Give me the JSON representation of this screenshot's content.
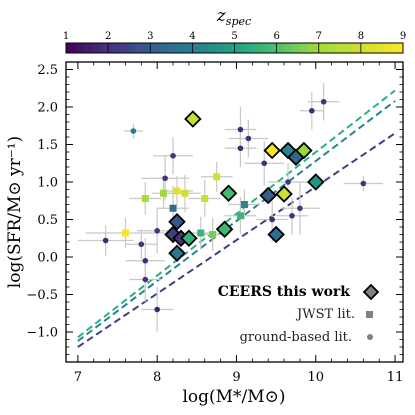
{
  "chart_data": {
    "type": "scatter",
    "xlabel": "log(M*/M⊙)",
    "ylabel": "log(SFR/M⊙ yr⁻¹)",
    "xlim": [
      6.85,
      11.1
    ],
    "ylim": [
      -1.4,
      2.6
    ],
    "x_ticks": [
      7,
      8,
      9,
      10,
      11
    ],
    "y_ticks": [
      -1.0,
      -0.5,
      0.0,
      0.5,
      1.0,
      1.5,
      2.0,
      2.5
    ],
    "x_tick_labels": [
      "7",
      "8",
      "9",
      "10",
      "11"
    ],
    "y_tick_labels": [
      "−1.0",
      "−0.5",
      "0.0",
      "0.5",
      "1.0",
      "1.5",
      "2.0",
      "2.5"
    ],
    "colorbar": {
      "label": "z",
      "label_subscript": "spec",
      "range": [
        1,
        9
      ],
      "ticks": [
        1,
        2,
        3,
        4,
        5,
        6,
        7,
        8,
        9
      ],
      "tick_labels": [
        "1",
        "2",
        "3",
        "4",
        "5",
        "6",
        "7",
        "8",
        "9"
      ],
      "colormap": "viridis"
    },
    "lines": [
      {
        "z": 2.0,
        "x": [
          7.0,
          11.0
        ],
        "y": [
          -1.2,
          1.65
        ],
        "color": "#433e85"
      },
      {
        "z": 5.0,
        "x": [
          7.0,
          11.0
        ],
        "y": [
          -1.12,
          2.08
        ],
        "color": "#26828e"
      },
      {
        "z": 6.5,
        "x": [
          7.0,
          11.0
        ],
        "y": [
          -1.07,
          2.22
        ],
        "color": "#2ab07f"
      }
    ],
    "series": [
      {
        "name": "CEERS this work",
        "marker": "diamond",
        "points": [
          {
            "x": 8.45,
            "y": 1.84,
            "z": 7.8
          },
          {
            "x": 9.45,
            "y": 1.42,
            "z": 8.8
          },
          {
            "x": 9.65,
            "y": 1.42,
            "z": 4.2
          },
          {
            "x": 9.75,
            "y": 1.33,
            "z": 3.3
          },
          {
            "x": 9.85,
            "y": 1.42,
            "z": 6.9
          },
          {
            "x": 10.0,
            "y": 1.0,
            "z": 4.7
          },
          {
            "x": 9.4,
            "y": 0.82,
            "z": 3.1
          },
          {
            "x": 9.6,
            "y": 0.84,
            "z": 8.0
          },
          {
            "x": 8.9,
            "y": 0.85,
            "z": 5.8
          },
          {
            "x": 8.85,
            "y": 0.37,
            "z": 5.7
          },
          {
            "x": 9.5,
            "y": 0.3,
            "z": 3.5
          },
          {
            "x": 8.25,
            "y": 0.47,
            "z": 2.9
          },
          {
            "x": 8.2,
            "y": 0.3,
            "z": 2.3
          },
          {
            "x": 8.3,
            "y": 0.25,
            "z": 2.1
          },
          {
            "x": 8.4,
            "y": 0.25,
            "z": 5.5
          },
          {
            "x": 8.25,
            "y": 0.05,
            "z": 3.8
          }
        ]
      },
      {
        "name": "JWST lit.",
        "marker": "square",
        "points": [
          {
            "x": 7.85,
            "y": 0.78,
            "z": 7.2,
            "xerr": 0.2,
            "yerr": 0.22
          },
          {
            "x": 8.08,
            "y": 0.85,
            "z": 7.0,
            "xerr": 0.15,
            "yerr": 0.2
          },
          {
            "x": 8.2,
            "y": 0.65,
            "z": 3.4,
            "xerr": 0.2,
            "yerr": 0.3
          },
          {
            "x": 8.25,
            "y": 0.88,
            "z": 8.4,
            "xerr": 0.2,
            "yerr": 0.2
          },
          {
            "x": 8.35,
            "y": 0.85,
            "z": 8.0,
            "xerr": 0.2,
            "yerr": 0.25
          },
          {
            "x": 8.6,
            "y": 0.78,
            "z": 7.9,
            "xerr": 0.2,
            "yerr": 0.25
          },
          {
            "x": 8.75,
            "y": 1.07,
            "z": 8.1,
            "xerr": 0.2,
            "yerr": 0.2
          },
          {
            "x": 7.6,
            "y": 0.32,
            "z": 8.9,
            "xerr": 0.5,
            "yerr": 0.2
          },
          {
            "x": 9.05,
            "y": 0.55,
            "z": 5.7,
            "xerr": 0.2,
            "yerr": 0.25
          },
          {
            "x": 9.1,
            "y": 0.7,
            "z": 4.2,
            "xerr": 0.2,
            "yerr": 0.2
          },
          {
            "x": 8.55,
            "y": 0.32,
            "z": 5.6,
            "xerr": 0.2,
            "yerr": 0.22
          },
          {
            "x": 8.7,
            "y": 0.3,
            "z": 6.5,
            "xerr": 0.2,
            "yerr": 0.22
          }
        ]
      },
      {
        "name": "ground-based lit.",
        "marker": "circle",
        "points": [
          {
            "x": 7.7,
            "y": 1.68,
            "z": 3.8,
            "xerr": 0.12,
            "yerr": 0.1
          },
          {
            "x": 8.2,
            "y": 1.35,
            "z": 2.0,
            "xerr": 0.25,
            "yerr": 0.25
          },
          {
            "x": 8.1,
            "y": 1.05,
            "z": 2.0,
            "xerr": 0.3,
            "yerr": 0.3
          },
          {
            "x": 9.05,
            "y": 1.7,
            "z": 1.8,
            "xerr": 0.2,
            "yerr": 0.3
          },
          {
            "x": 9.05,
            "y": 1.45,
            "z": 1.8,
            "xerr": 0.2,
            "yerr": 0.25
          },
          {
            "x": 9.15,
            "y": 1.58,
            "z": 2.0,
            "xerr": 0.25,
            "yerr": 0.25
          },
          {
            "x": 9.35,
            "y": 1.25,
            "z": 1.9,
            "xerr": 0.25,
            "yerr": 0.3
          },
          {
            "x": 9.95,
            "y": 1.95,
            "z": 1.8,
            "xerr": 0.15,
            "yerr": 0.25
          },
          {
            "x": 10.1,
            "y": 2.07,
            "z": 1.9,
            "xerr": 0.2,
            "yerr": 0.25
          },
          {
            "x": 10.6,
            "y": 0.98,
            "z": 2.0,
            "xerr": 0.25,
            "yerr": 0.1
          },
          {
            "x": 9.65,
            "y": 1.0,
            "z": 2.1,
            "xerr": 0.25,
            "yerr": 0.25
          },
          {
            "x": 9.7,
            "y": 0.55,
            "z": 2.0,
            "xerr": 0.2,
            "yerr": 0.25
          },
          {
            "x": 9.8,
            "y": 0.65,
            "z": 2.2,
            "xerr": 0.25,
            "yerr": 0.35
          },
          {
            "x": 9.45,
            "y": 0.5,
            "z": 1.8,
            "xerr": 0.2,
            "yerr": 0.3
          },
          {
            "x": 7.35,
            "y": 0.22,
            "z": 1.8,
            "xerr": 0.35,
            "yerr": 0.2
          },
          {
            "x": 7.85,
            "y": -0.05,
            "z": 1.9,
            "xerr": 0.25,
            "yerr": 0.3
          },
          {
            "x": 7.85,
            "y": -0.3,
            "z": 2.0,
            "xerr": 0.2,
            "yerr": 0.3
          },
          {
            "x": 7.8,
            "y": 0.17,
            "z": 2.1,
            "xerr": 0.2,
            "yerr": 0.2
          },
          {
            "x": 8.0,
            "y": -0.7,
            "z": 1.7,
            "xerr": 0.2,
            "yerr": 0.3
          },
          {
            "x": 8.0,
            "y": 0.35,
            "z": 2.0,
            "xerr": 0.25,
            "yerr": 0.3
          }
        ]
      }
    ],
    "legend": {
      "placement": "bottom-right",
      "entries": [
        "CEERS this work",
        "JWST lit.",
        "ground-based lit."
      ]
    },
    "grid": false
  }
}
